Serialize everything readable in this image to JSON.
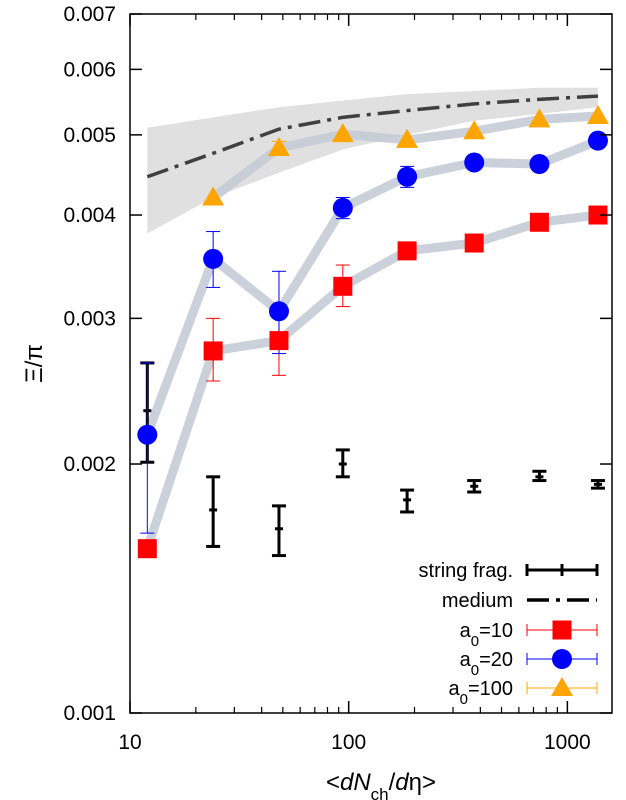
{
  "chart_data": {
    "type": "scatter",
    "x_scale": "log",
    "y_scale": "log",
    "xlim": [
      10,
      1600
    ],
    "ylim": [
      0.001,
      0.007
    ],
    "xlabel": "<dN_ch/dη>",
    "ylabel": "Ξ/π",
    "x_ticks": [
      {
        "value": 10,
        "label": "10"
      },
      {
        "value": 100,
        "label": "100"
      },
      {
        "value": 1000,
        "label": "1000"
      }
    ],
    "y_ticks": [
      {
        "value": 0.001,
        "label": "0.001"
      },
      {
        "value": 0.002,
        "label": "0.002"
      },
      {
        "value": 0.003,
        "label": "0.003"
      },
      {
        "value": 0.004,
        "label": "0.004"
      },
      {
        "value": 0.005,
        "label": "0.005"
      },
      {
        "value": 0.006,
        "label": "0.006"
      },
      {
        "value": 0.007,
        "label": "0.007"
      }
    ],
    "legend_position": "bottom-right",
    "series": [
      {
        "name": "string frag.",
        "style": "errorbar",
        "color": "#000000",
        "points": [
          {
            "x": 12,
            "y": 0.00232,
            "lo": 0.00201,
            "hi": 0.00265
          },
          {
            "x": 24,
            "y": 0.00176,
            "lo": 0.00159,
            "hi": 0.00193
          },
          {
            "x": 48,
            "y": 0.00167,
            "lo": 0.00155,
            "hi": 0.00178
          },
          {
            "x": 94,
            "y": 0.002,
            "lo": 0.00193,
            "hi": 0.00208
          },
          {
            "x": 185,
            "y": 0.00181,
            "lo": 0.00175,
            "hi": 0.00186
          },
          {
            "x": 375,
            "y": 0.00188,
            "lo": 0.00185,
            "hi": 0.00191
          },
          {
            "x": 745,
            "y": 0.00193,
            "lo": 0.00191,
            "hi": 0.00196
          },
          {
            "x": 1380,
            "y": 0.00189,
            "lo": 0.00187,
            "hi": 0.00191
          }
        ]
      },
      {
        "name": "medium",
        "style": "dash-dot line with uncertainty band",
        "color": "#404040",
        "band_color": "#e0e0e0",
        "points": [
          {
            "x": 12,
            "y": 0.00445,
            "lo": 0.0038,
            "hi": 0.0051
          },
          {
            "x": 24,
            "y": 0.00475,
            "lo": 0.0042,
            "hi": 0.00525
          },
          {
            "x": 48,
            "y": 0.00508,
            "lo": 0.0045,
            "hi": 0.0054
          },
          {
            "x": 94,
            "y": 0.00525,
            "lo": 0.0048,
            "hi": 0.0055
          },
          {
            "x": 185,
            "y": 0.00535,
            "lo": 0.005,
            "hi": 0.0056
          },
          {
            "x": 375,
            "y": 0.00545,
            "lo": 0.0052,
            "hi": 0.00565
          },
          {
            "x": 745,
            "y": 0.00552,
            "lo": 0.0053,
            "hi": 0.0057
          },
          {
            "x": 1380,
            "y": 0.00557,
            "lo": 0.0054,
            "hi": 0.0057
          }
        ]
      },
      {
        "name": "a₀=10",
        "name_parts": [
          "a",
          "0",
          "=10"
        ],
        "marker": "square",
        "color": "#ff0000",
        "points": [
          {
            "x": 12,
            "y": 0.00158,
            "lo": 0.00158,
            "hi": 0.00158
          },
          {
            "x": 24,
            "y": 0.00274,
            "lo": 0.00252,
            "hi": 0.003
          },
          {
            "x": 48,
            "y": 0.00282,
            "lo": 0.00256,
            "hi": 0.0031
          },
          {
            "x": 94,
            "y": 0.00328,
            "lo": 0.0031,
            "hi": 0.00348
          },
          {
            "x": 185,
            "y": 0.00362,
            "lo": 0.00362,
            "hi": 0.00362
          },
          {
            "x": 375,
            "y": 0.0037,
            "lo": 0.0037,
            "hi": 0.0037
          },
          {
            "x": 745,
            "y": 0.00392,
            "lo": 0.00392,
            "hi": 0.00392
          },
          {
            "x": 1380,
            "y": 0.004,
            "lo": 0.004,
            "hi": 0.004
          }
        ]
      },
      {
        "name": "a₀=20",
        "name_parts": [
          "a",
          "0",
          "=20"
        ],
        "marker": "circle",
        "color": "#0000ff",
        "points": [
          {
            "x": 12,
            "y": 0.00217,
            "lo": 0.00165,
            "hi": 0.00265
          },
          {
            "x": 24,
            "y": 0.00354,
            "lo": 0.00327,
            "hi": 0.00382
          },
          {
            "x": 48,
            "y": 0.00306,
            "lo": 0.00272,
            "hi": 0.00342
          },
          {
            "x": 94,
            "y": 0.00408,
            "lo": 0.00396,
            "hi": 0.0042
          },
          {
            "x": 185,
            "y": 0.00445,
            "lo": 0.00432,
            "hi": 0.00458
          },
          {
            "x": 375,
            "y": 0.00463,
            "lo": 0.00463,
            "hi": 0.00463
          },
          {
            "x": 745,
            "y": 0.00461,
            "lo": 0.00461,
            "hi": 0.00461
          },
          {
            "x": 1380,
            "y": 0.00492,
            "lo": 0.00492,
            "hi": 0.00492
          }
        ]
      },
      {
        "name": "a₀=100",
        "name_parts": [
          "a",
          "0",
          "=100"
        ],
        "marker": "triangle",
        "color": "#ffa500",
        "points": [
          {
            "x": 24,
            "y": 0.0042,
            "lo": 0.0042,
            "hi": 0.0042
          },
          {
            "x": 48,
            "y": 0.00482,
            "lo": 0.00473,
            "hi": 0.00491
          },
          {
            "x": 94,
            "y": 0.00501,
            "lo": 0.00501,
            "hi": 0.00501
          },
          {
            "x": 185,
            "y": 0.00493,
            "lo": 0.00493,
            "hi": 0.00493
          },
          {
            "x": 375,
            "y": 0.00505,
            "lo": 0.00505,
            "hi": 0.00505
          },
          {
            "x": 745,
            "y": 0.00522,
            "lo": 0.00522,
            "hi": 0.00522
          },
          {
            "x": 1380,
            "y": 0.00527,
            "lo": 0.00527,
            "hi": 0.00527
          }
        ]
      }
    ]
  }
}
